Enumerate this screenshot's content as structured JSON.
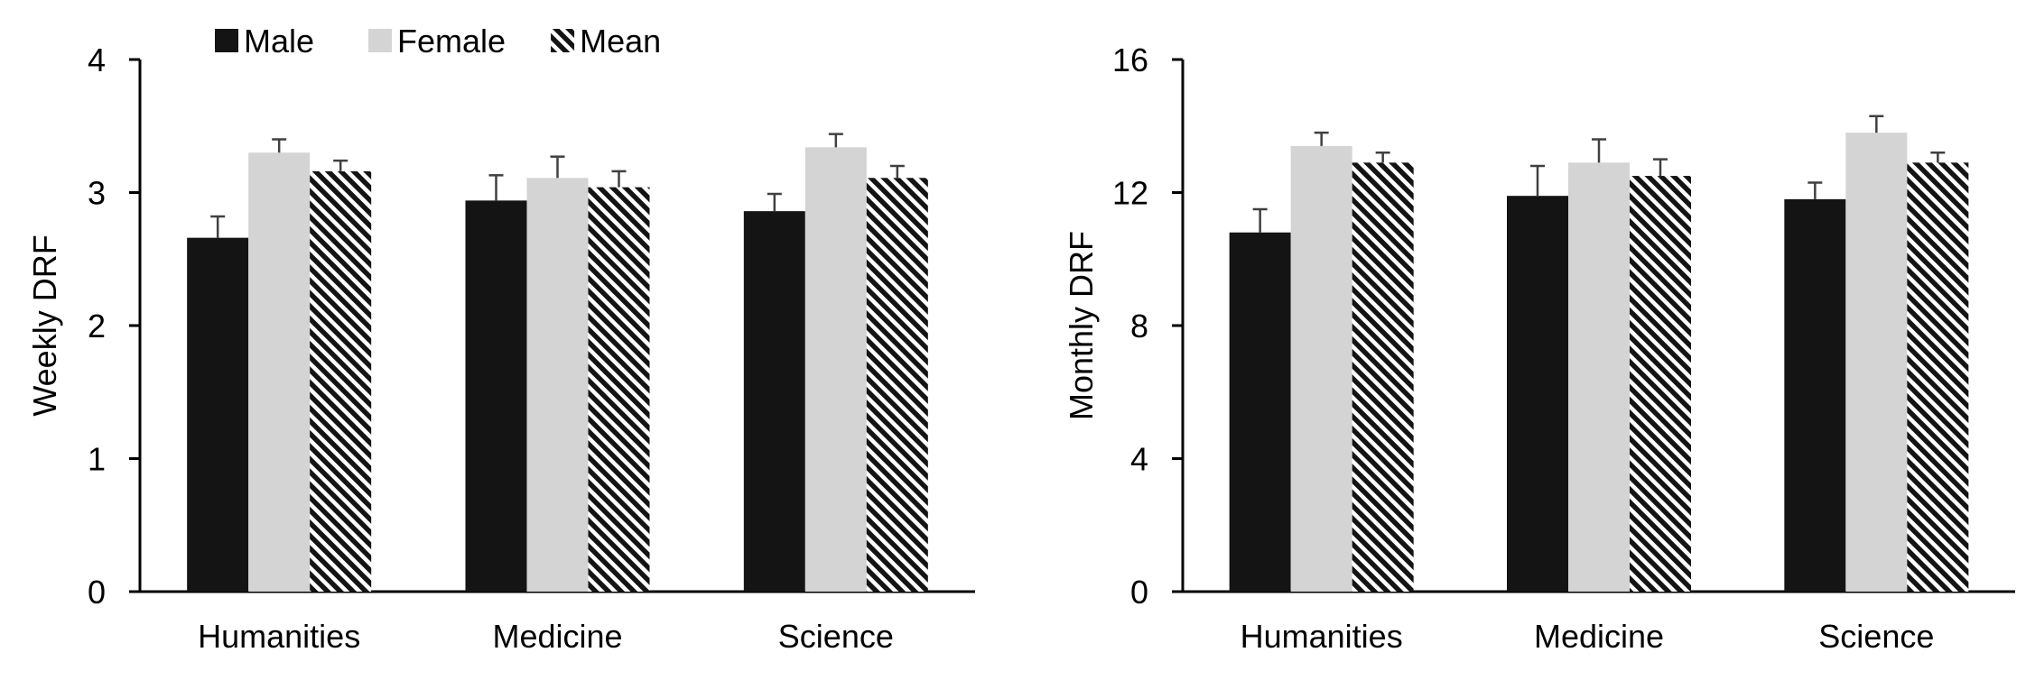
{
  "colors": {
    "male": "#141414",
    "female": "#d4d4d4",
    "mean_stripe_dark": "#141414",
    "mean_stripe_light": "#ffffff",
    "axis": "#000000",
    "error_bar": "#404040"
  },
  "legend": {
    "placement": "top-left",
    "items": [
      {
        "label": "Male",
        "pattern": "solid-dark"
      },
      {
        "label": "Female",
        "pattern": "solid-light"
      },
      {
        "label": "Mean",
        "pattern": "diagonal-stripes"
      }
    ]
  },
  "chart_data": [
    {
      "type": "bar",
      "title": "",
      "xlabel": "",
      "ylabel": "Weekly DRF",
      "ylim": [
        0,
        4
      ],
      "yticks": [
        "0",
        "1",
        "2",
        "3",
        "4"
      ],
      "categories": [
        "Humanities",
        "Medicine",
        "Science"
      ],
      "grid": false,
      "series": [
        {
          "name": "Male",
          "values": [
            2.66,
            2.94,
            2.86
          ],
          "errors": [
            0.16,
            0.19,
            0.13
          ]
        },
        {
          "name": "Female",
          "values": [
            3.3,
            3.11,
            3.34
          ],
          "errors": [
            0.1,
            0.16,
            0.1
          ]
        },
        {
          "name": "Mean",
          "values": [
            3.16,
            3.04,
            3.11
          ],
          "errors": [
            0.08,
            0.12,
            0.09
          ]
        }
      ]
    },
    {
      "type": "bar",
      "title": "",
      "xlabel": "",
      "ylabel": "Monthly DRF",
      "ylim": [
        0,
        16
      ],
      "yticks": [
        "0",
        "4",
        "8",
        "12",
        "16"
      ],
      "categories": [
        "Humanities",
        "Medicine",
        "Science"
      ],
      "grid": false,
      "series": [
        {
          "name": "Male",
          "values": [
            10.8,
            11.9,
            11.8
          ],
          "errors": [
            0.7,
            0.9,
            0.5
          ]
        },
        {
          "name": "Female",
          "values": [
            13.4,
            12.9,
            13.8
          ],
          "errors": [
            0.4,
            0.7,
            0.5
          ]
        },
        {
          "name": "Mean",
          "values": [
            12.9,
            12.5,
            12.9
          ],
          "errors": [
            0.3,
            0.5,
            0.3
          ]
        }
      ]
    }
  ]
}
